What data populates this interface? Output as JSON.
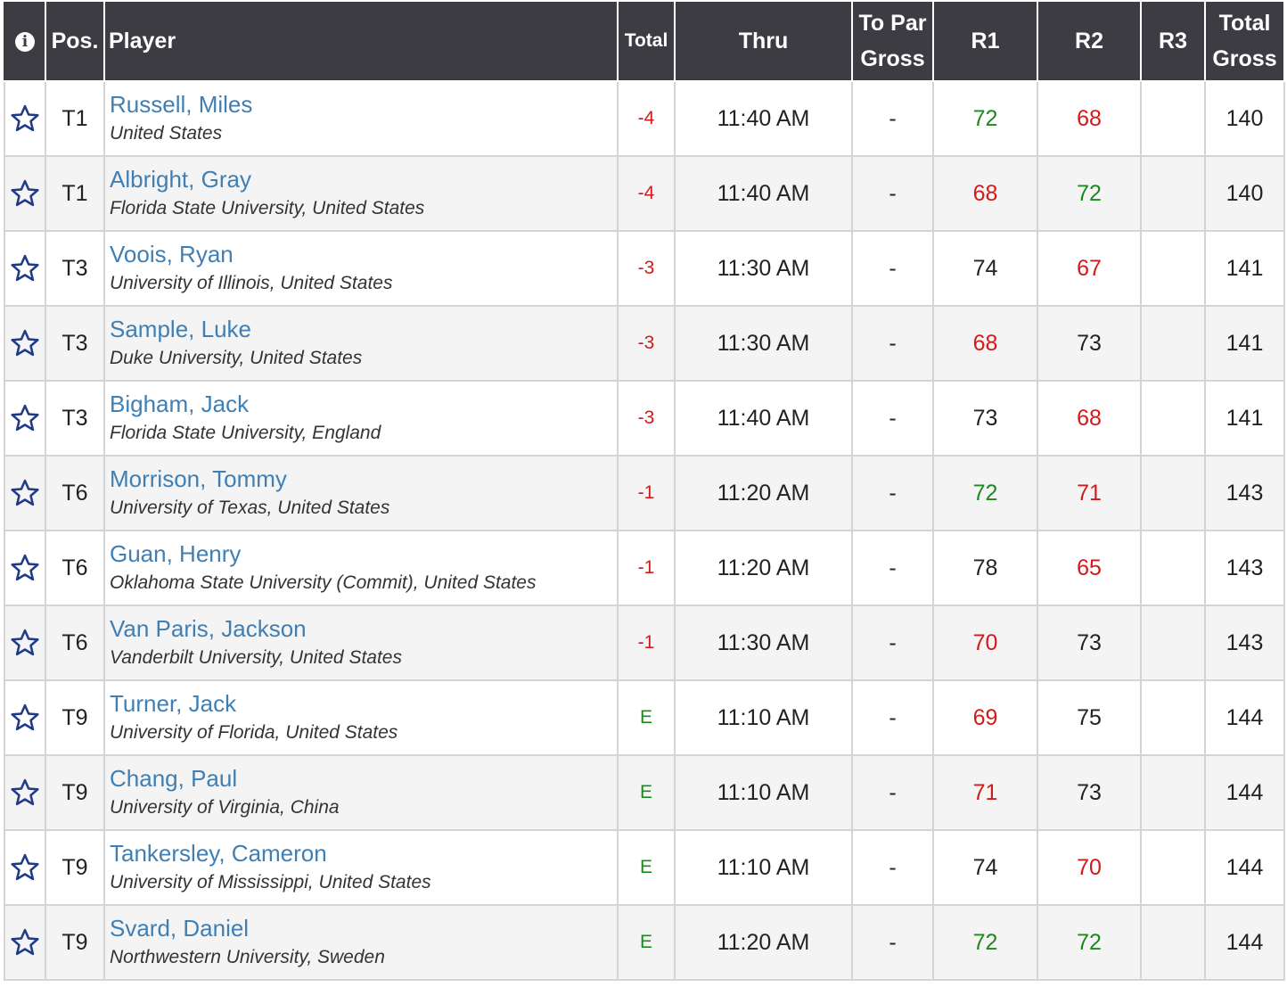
{
  "colors": {
    "header_bg": "#3c3c42",
    "link": "#3f7fb4",
    "under_par": "#d11a1a",
    "even_par": "#1a8a1a",
    "star": "#1f3b8a"
  },
  "header": {
    "info_icon": "info-icon",
    "pos": "Pos.",
    "player": "Player",
    "total": "Total",
    "thru": "Thru",
    "to_par_gross_line1": "To Par",
    "to_par_gross_line2": "Gross",
    "r1": "R1",
    "r2": "R2",
    "r3": "R3",
    "total_gross_line1": "Total",
    "total_gross_line2": "Gross"
  },
  "rows": [
    {
      "pos": "T1",
      "name": "Russell, Miles",
      "affiliation": "United States",
      "total": "-4",
      "thru": "11:40 AM",
      "to_par_gross": "-",
      "r1": "72",
      "r2": "68",
      "r3": "",
      "total_gross": "140"
    },
    {
      "pos": "T1",
      "name": "Albright, Gray",
      "affiliation": "Florida State University, United States",
      "total": "-4",
      "thru": "11:40 AM",
      "to_par_gross": "-",
      "r1": "68",
      "r2": "72",
      "r3": "",
      "total_gross": "140"
    },
    {
      "pos": "T3",
      "name": "Voois, Ryan",
      "affiliation": "University of Illinois, United States",
      "total": "-3",
      "thru": "11:30 AM",
      "to_par_gross": "-",
      "r1": "74",
      "r2": "67",
      "r3": "",
      "total_gross": "141"
    },
    {
      "pos": "T3",
      "name": "Sample, Luke",
      "affiliation": "Duke University, United States",
      "total": "-3",
      "thru": "11:30 AM",
      "to_par_gross": "-",
      "r1": "68",
      "r2": "73",
      "r3": "",
      "total_gross": "141"
    },
    {
      "pos": "T3",
      "name": "Bigham, Jack",
      "affiliation": "Florida State University, England",
      "total": "-3",
      "thru": "11:40 AM",
      "to_par_gross": "-",
      "r1": "73",
      "r2": "68",
      "r3": "",
      "total_gross": "141"
    },
    {
      "pos": "T6",
      "name": "Morrison, Tommy",
      "affiliation": "University of Texas, United States",
      "total": "-1",
      "thru": "11:20 AM",
      "to_par_gross": "-",
      "r1": "72",
      "r2": "71",
      "r3": "",
      "total_gross": "143"
    },
    {
      "pos": "T6",
      "name": "Guan, Henry",
      "affiliation": "Oklahoma State University (Commit), United States",
      "total": "-1",
      "thru": "11:20 AM",
      "to_par_gross": "-",
      "r1": "78",
      "r2": "65",
      "r3": "",
      "total_gross": "143"
    },
    {
      "pos": "T6",
      "name": "Van Paris, Jackson",
      "affiliation": "Vanderbilt University, United States",
      "total": "-1",
      "thru": "11:30 AM",
      "to_par_gross": "-",
      "r1": "70",
      "r2": "73",
      "r3": "",
      "total_gross": "143"
    },
    {
      "pos": "T9",
      "name": "Turner, Jack",
      "affiliation": "University of Florida, United States",
      "total": "E",
      "thru": "11:10 AM",
      "to_par_gross": "-",
      "r1": "69",
      "r2": "75",
      "r3": "",
      "total_gross": "144"
    },
    {
      "pos": "T9",
      "name": "Chang, Paul",
      "affiliation": "University of Virginia, China",
      "total": "E",
      "thru": "11:10 AM",
      "to_par_gross": "-",
      "r1": "71",
      "r2": "73",
      "r3": "",
      "total_gross": "144"
    },
    {
      "pos": "T9",
      "name": "Tankersley, Cameron",
      "affiliation": "University of Mississippi, United States",
      "total": "E",
      "thru": "11:10 AM",
      "to_par_gross": "-",
      "r1": "74",
      "r2": "70",
      "r3": "",
      "total_gross": "144"
    },
    {
      "pos": "T9",
      "name": "Svard, Daniel",
      "affiliation": "Northwestern University, Sweden",
      "total": "E",
      "thru": "11:20 AM",
      "to_par_gross": "-",
      "r1": "72",
      "r2": "72",
      "r3": "",
      "total_gross": "144"
    }
  ]
}
